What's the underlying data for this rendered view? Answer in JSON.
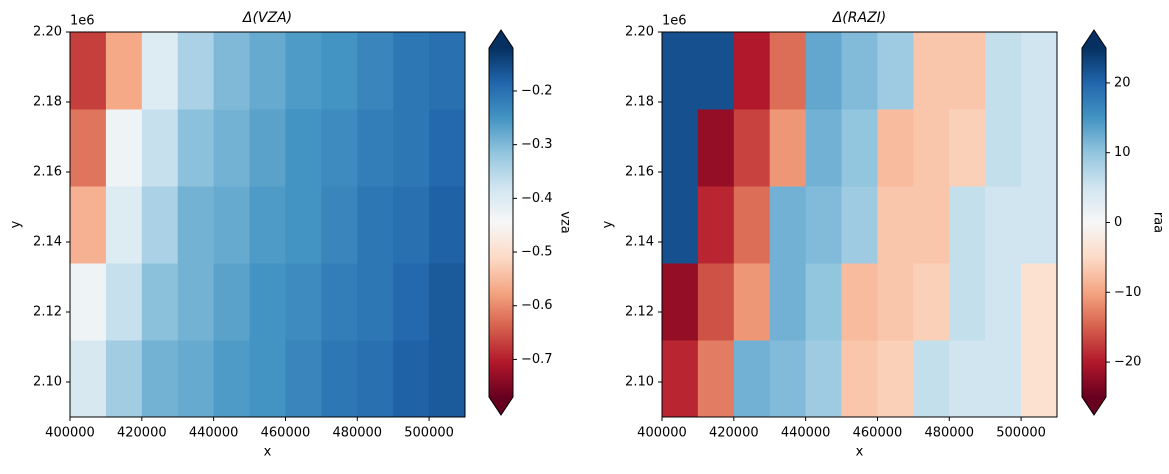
{
  "chart_data": [
    {
      "type": "heatmap",
      "title": "Δ(VZA)",
      "x_label": "x",
      "y_label": "y",
      "y_offset_label": "1e6",
      "xlim": [
        400000,
        510000
      ],
      "ylim": [
        2090000,
        2200000
      ],
      "xticks": [
        400000,
        420000,
        440000,
        460000,
        480000,
        500000
      ],
      "yticks": [
        {
          "value": 2100000,
          "label": "2.10"
        },
        {
          "value": 2120000,
          "label": "2.12"
        },
        {
          "value": 2140000,
          "label": "2.14"
        },
        {
          "value": 2160000,
          "label": "2.16"
        },
        {
          "value": 2180000,
          "label": "2.18"
        },
        {
          "value": 2200000,
          "label": "2.20"
        }
      ],
      "x": [
        405000,
        415000,
        425000,
        435000,
        445000,
        455000,
        465000,
        475000,
        485000,
        495000,
        505000
      ],
      "y": [
        2101000,
        2123000,
        2145000,
        2167000,
        2189000
      ],
      "z": [
        [
          -0.39,
          -0.33,
          -0.29,
          -0.28,
          -0.26,
          -0.25,
          -0.23,
          -0.21,
          -0.2,
          -0.18,
          -0.17
        ],
        [
          -0.43,
          -0.37,
          -0.31,
          -0.29,
          -0.27,
          -0.25,
          -0.24,
          -0.22,
          -0.21,
          -0.19,
          -0.17
        ],
        [
          -0.56,
          -0.4,
          -0.34,
          -0.29,
          -0.28,
          -0.26,
          -0.25,
          -0.23,
          -0.21,
          -0.2,
          -0.18
        ],
        [
          -0.62,
          -0.43,
          -0.37,
          -0.31,
          -0.29,
          -0.27,
          -0.25,
          -0.24,
          -0.22,
          -0.21,
          -0.19
        ],
        [
          -0.67,
          -0.57,
          -0.4,
          -0.34,
          -0.3,
          -0.28,
          -0.26,
          -0.25,
          -0.23,
          -0.21,
          -0.2
        ]
      ],
      "clim": [
        -0.77,
        -0.12
      ],
      "colormap": [
        "#67001f",
        "#b2182b",
        "#d6604d",
        "#f4a582",
        "#fddbc7",
        "#f7f7f7",
        "#d1e5f0",
        "#92c5de",
        "#4393c3",
        "#2166ac",
        "#053061"
      ],
      "cbar_label": "vza",
      "cbar_ticks": [
        {
          "value": -0.7,
          "label": "−0.7"
        },
        {
          "value": -0.6,
          "label": "−0.6"
        },
        {
          "value": -0.5,
          "label": "−0.5"
        },
        {
          "value": -0.4,
          "label": "−0.4"
        },
        {
          "value": -0.3,
          "label": "−0.3"
        },
        {
          "value": -0.2,
          "label": "−0.2"
        }
      ]
    },
    {
      "type": "heatmap",
      "title": "Δ(RAZI)",
      "x_label": "x",
      "y_label": "y",
      "y_offset_label": "1e6",
      "xlim": [
        400000,
        510000
      ],
      "ylim": [
        2090000,
        2200000
      ],
      "xticks": [
        400000,
        420000,
        440000,
        460000,
        480000,
        500000
      ],
      "yticks": [
        {
          "value": 2100000,
          "label": "2.10"
        },
        {
          "value": 2120000,
          "label": "2.12"
        },
        {
          "value": 2140000,
          "label": "2.14"
        },
        {
          "value": 2160000,
          "label": "2.16"
        },
        {
          "value": 2180000,
          "label": "2.18"
        },
        {
          "value": 2200000,
          "label": "2.20"
        }
      ],
      "x": [
        405000,
        415000,
        425000,
        435000,
        445000,
        455000,
        465000,
        475000,
        485000,
        495000,
        505000
      ],
      "y": [
        2101000,
        2123000,
        2145000,
        2167000,
        2189000
      ],
      "z": [
        [
          -19,
          -13,
          12,
          11,
          9,
          -7,
          -6,
          6,
          5,
          5,
          -4
        ],
        [
          -22,
          -16,
          -11,
          12,
          10,
          -8,
          -7,
          -6,
          6,
          5,
          -4
        ],
        [
          22,
          -19,
          -14,
          12,
          11,
          9,
          -7,
          -7,
          6,
          5,
          5
        ],
        [
          22,
          -22,
          -17,
          -11,
          12,
          10,
          -8,
          -7,
          -6,
          6,
          5
        ],
        [
          22,
          22,
          -20,
          -14,
          13,
          11,
          9,
          -7,
          -7,
          6,
          5
        ]
      ],
      "clim": [
        -25,
        25
      ],
      "colormap": [
        "#67001f",
        "#b2182b",
        "#d6604d",
        "#f4a582",
        "#fddbc7",
        "#f7f7f7",
        "#d1e5f0",
        "#92c5de",
        "#4393c3",
        "#2166ac",
        "#053061"
      ],
      "cbar_label": "raa",
      "cbar_ticks": [
        {
          "value": -20,
          "label": "−20"
        },
        {
          "value": -10,
          "label": "−10"
        },
        0,
        10,
        20
      ]
    }
  ]
}
